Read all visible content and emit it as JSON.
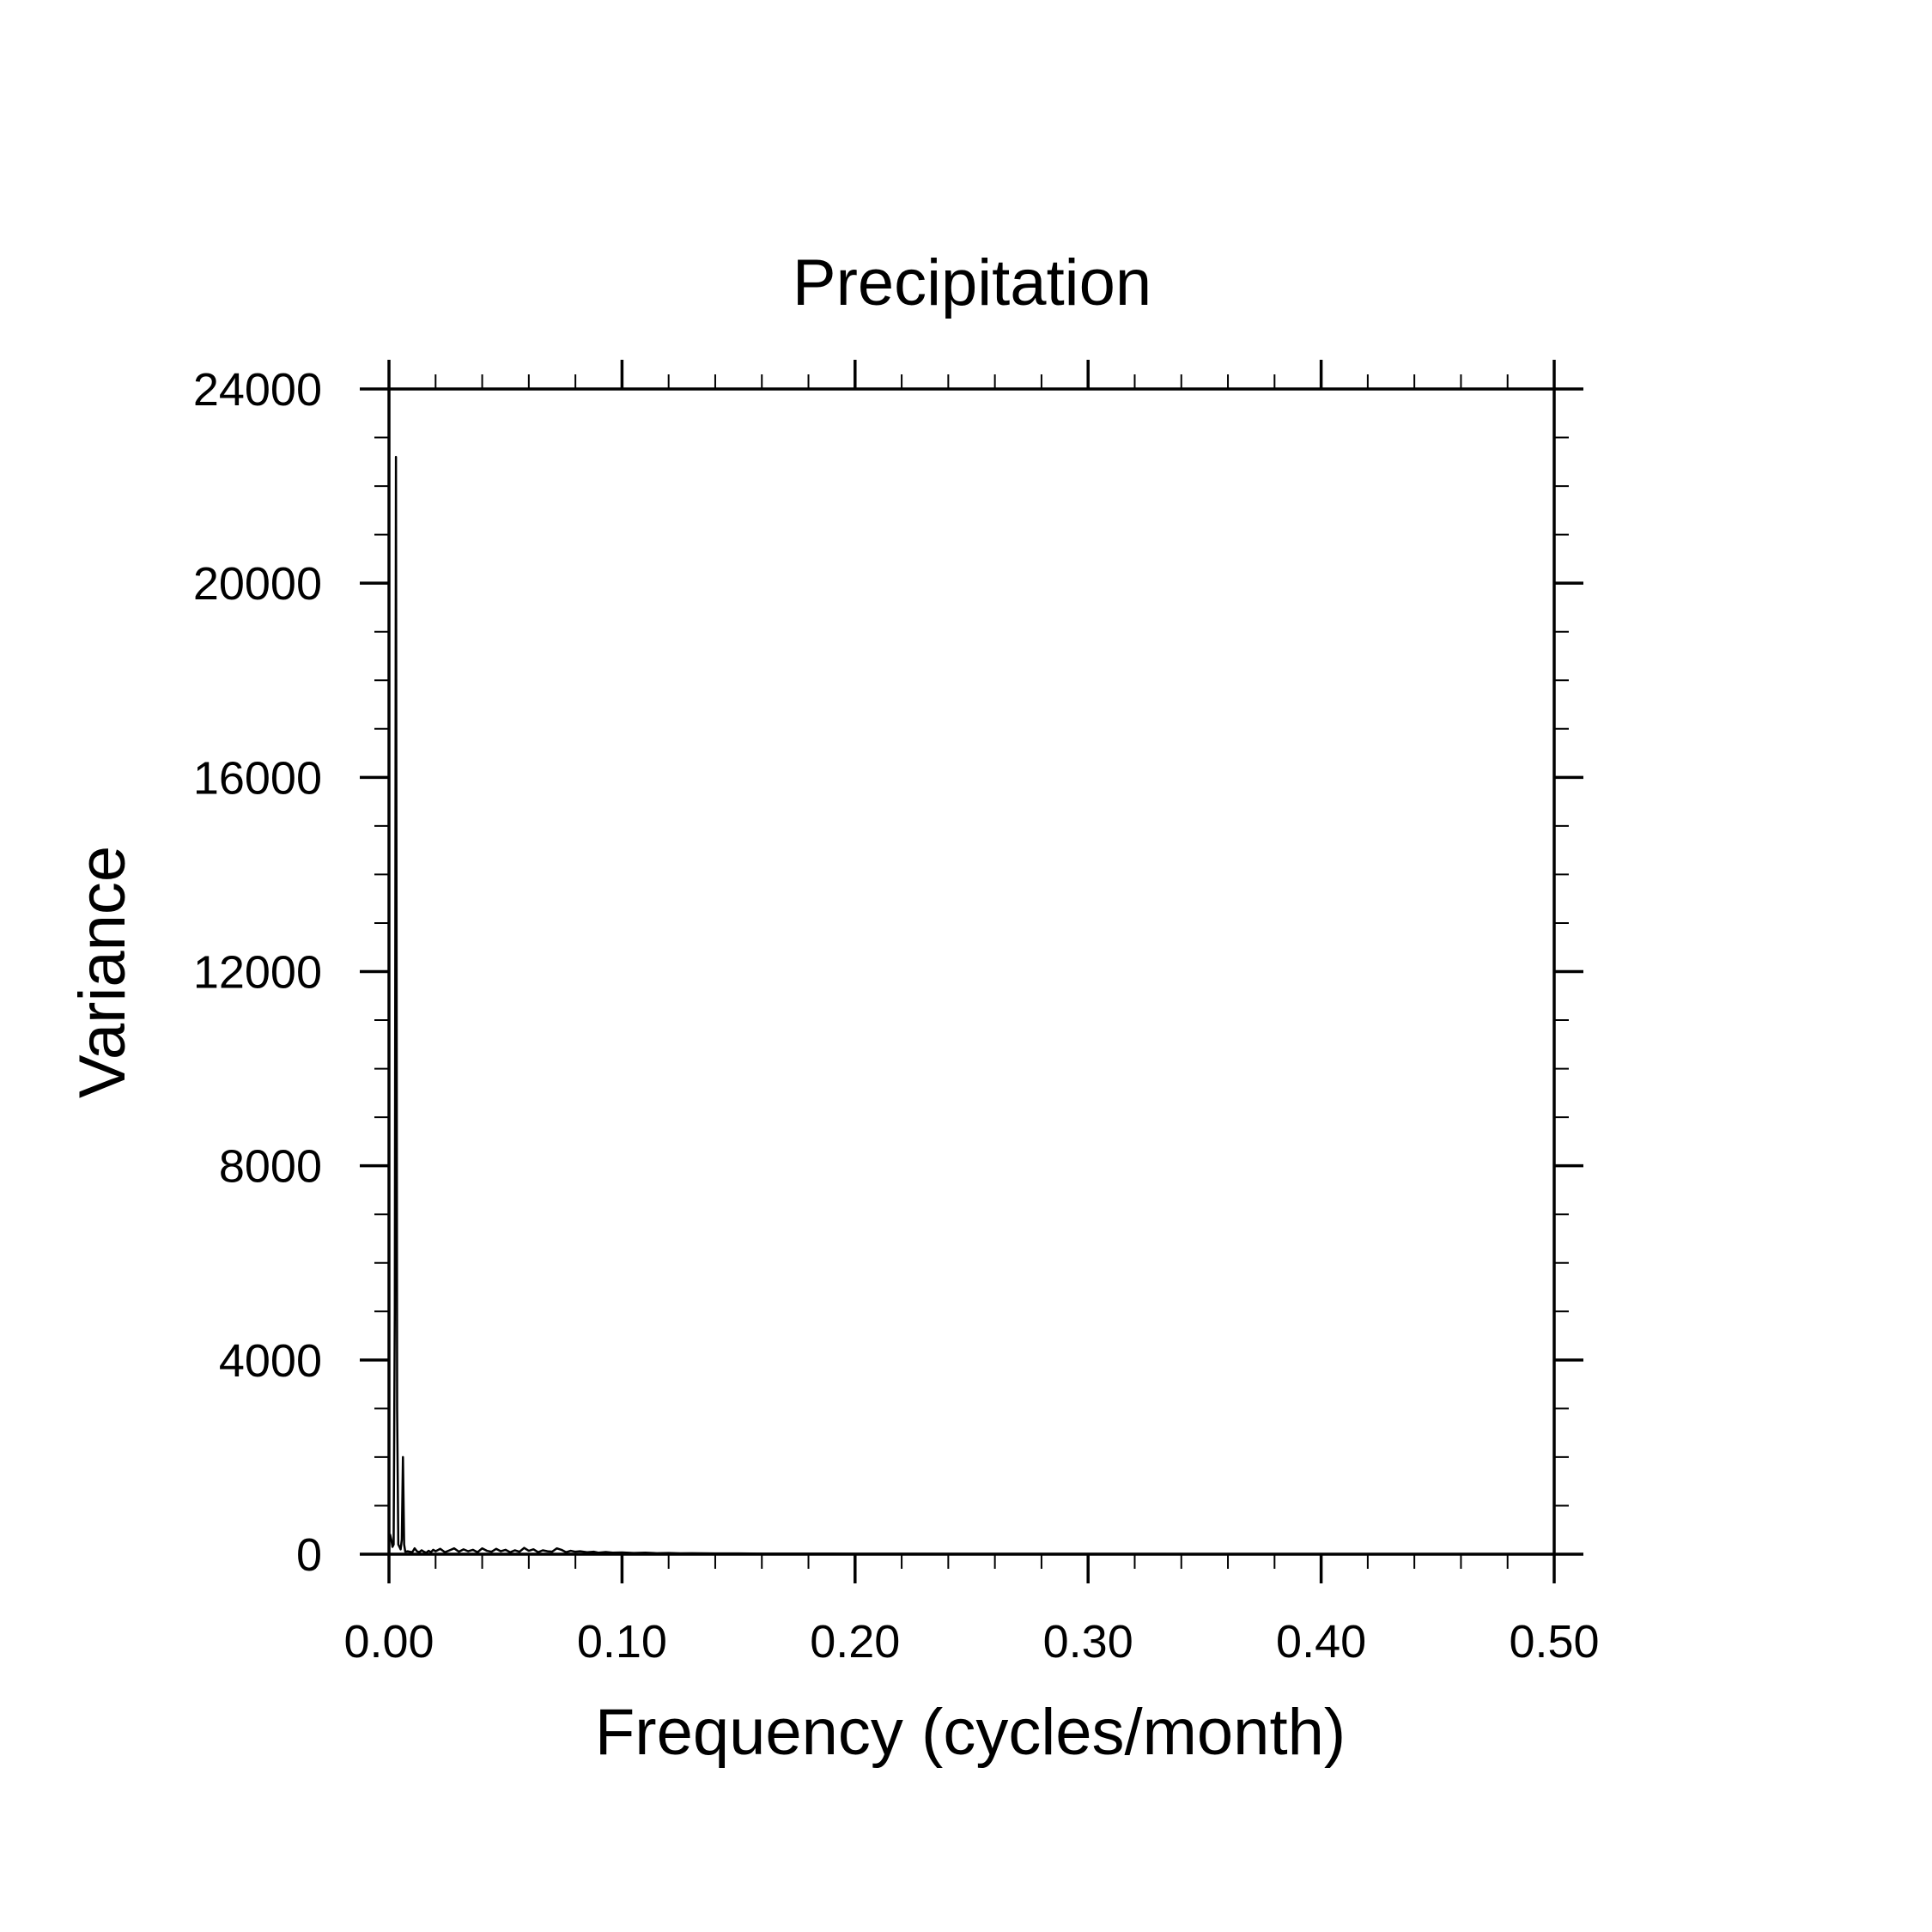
{
  "chart_data": {
    "type": "line",
    "title": "Precipitation",
    "xlabel": "Frequency (cycles/month)",
    "ylabel": "Variance",
    "xlim": [
      0.0,
      0.5
    ],
    "ylim": [
      0,
      24000
    ],
    "x_ticks": [
      "0.00",
      "0.10",
      "0.20",
      "0.30",
      "0.40",
      "0.50"
    ],
    "x_tick_values": [
      0.0,
      0.1,
      0.2,
      0.3,
      0.4,
      0.5
    ],
    "y_ticks": [
      "0",
      "4000",
      "8000",
      "12000",
      "16000",
      "20000",
      "24000"
    ],
    "y_tick_values": [
      0,
      4000,
      8000,
      12000,
      16000,
      20000,
      24000
    ],
    "x_minor_step": 0.02,
    "y_minor_step": 1000,
    "grid": false,
    "legend": "none",
    "line_color": "#000000",
    "series": [
      {
        "x": [
          0.0,
          0.0005,
          0.001,
          0.0015,
          0.002,
          0.0025,
          0.003,
          0.0035,
          0.004,
          0.0045,
          0.005,
          0.0055,
          0.006,
          0.0065,
          0.007,
          0.008,
          0.009,
          0.01,
          0.011,
          0.012,
          0.013,
          0.014,
          0.015,
          0.016,
          0.017,
          0.018,
          0.019,
          0.02,
          0.022,
          0.024,
          0.026,
          0.028,
          0.03,
          0.032,
          0.034,
          0.036,
          0.038,
          0.04,
          0.042,
          0.044,
          0.046,
          0.048,
          0.05,
          0.052,
          0.054,
          0.056,
          0.058,
          0.06,
          0.062,
          0.064,
          0.066,
          0.068,
          0.07,
          0.072,
          0.074,
          0.076,
          0.078,
          0.08,
          0.082,
          0.085,
          0.088,
          0.09,
          0.093,
          0.096,
          0.1,
          0.105,
          0.11,
          0.115,
          0.12,
          0.125,
          0.13,
          0.14,
          0.15,
          0.16,
          0.17,
          0.18,
          0.19,
          0.2,
          0.22,
          0.25,
          0.28,
          0.3,
          0.35,
          0.4,
          0.45,
          0.5
        ],
        "values": [
          200,
          400,
          300,
          150,
          200,
          5000,
          22600,
          3000,
          200,
          150,
          100,
          300,
          2000,
          200,
          50,
          60,
          50,
          40,
          120,
          60,
          40,
          80,
          50,
          30,
          70,
          40,
          90,
          60,
          110,
          40,
          80,
          120,
          50,
          100,
          60,
          90,
          40,
          120,
          70,
          50,
          110,
          60,
          90,
          40,
          80,
          50,
          130,
          70,
          100,
          40,
          80,
          60,
          50,
          120,
          90,
          40,
          70,
          50,
          60,
          40,
          50,
          30,
          45,
          30,
          35,
          25,
          30,
          20,
          25,
          18,
          20,
          15,
          15,
          12,
          12,
          10,
          10,
          8,
          8,
          7,
          6,
          6,
          5,
          4,
          4,
          3
        ]
      }
    ]
  }
}
